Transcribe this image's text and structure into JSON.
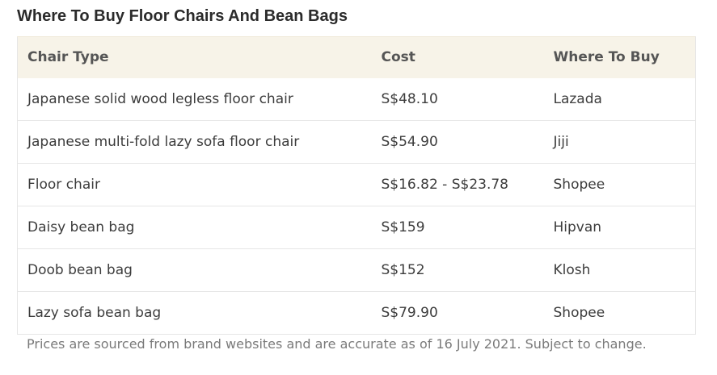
{
  "title": "Where To Buy Floor Chairs And Bean Bags",
  "table": {
    "headers": {
      "chair_type": "Chair Type",
      "cost": "Cost",
      "where_to_buy": "Where To Buy"
    },
    "rows": [
      {
        "chair_type": "Japanese solid wood legless floor chair",
        "cost": "S$48.10",
        "where_to_buy": "Lazada"
      },
      {
        "chair_type": "Japanese multi-fold lazy sofa floor chair",
        "cost": "S$54.90",
        "where_to_buy": "Jiji"
      },
      {
        "chair_type": "Floor chair",
        "cost": "S$16.82 - S$23.78",
        "where_to_buy": "Shopee"
      },
      {
        "chair_type": "Daisy bean bag",
        "cost": "S$159",
        "where_to_buy": "Hipvan"
      },
      {
        "chair_type": "Doob bean bag",
        "cost": "S$152",
        "where_to_buy": "Klosh"
      },
      {
        "chair_type": "Lazy sofa bean bag",
        "cost": "S$79.90",
        "where_to_buy": "Shopee"
      }
    ]
  },
  "note": "Prices are sourced from brand websites and are accurate as of 16 July 2021. Subject to change.",
  "colors": {
    "header_background": "#f7f3e8",
    "row_border": "#e6e6e6"
  }
}
